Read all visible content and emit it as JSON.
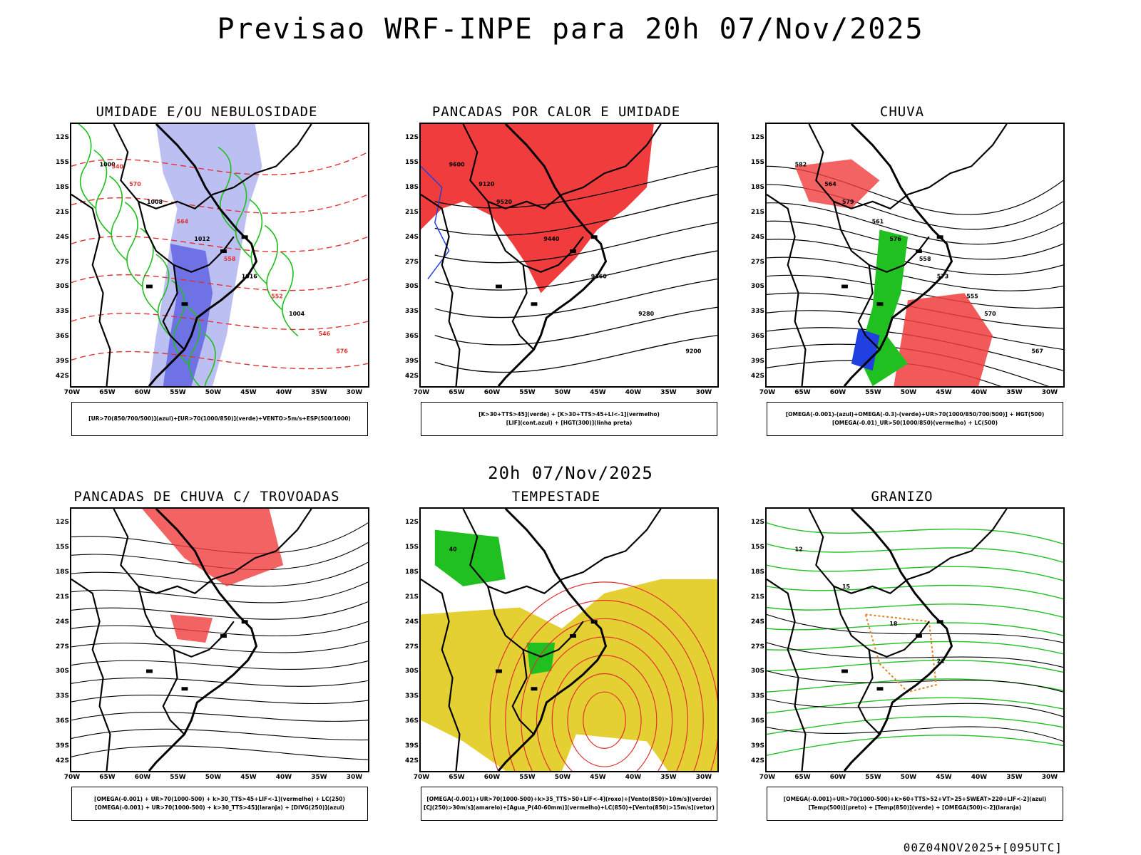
{
  "header": {
    "title": "Previsao WRF-INPE  para 20h 07/Nov/2025",
    "mid_title": "20h 07/Nov/2025",
    "footer": "00Z04NOV2025+[095UTC]"
  },
  "axes": {
    "lat_labels": [
      "12S",
      "15S",
      "18S",
      "21S",
      "24S",
      "27S",
      "30S",
      "33S",
      "36S",
      "39S",
      "42S"
    ],
    "lon_labels": [
      "70W",
      "65W",
      "60W",
      "55W",
      "50W",
      "45W",
      "40W",
      "35W",
      "30W"
    ]
  },
  "panels": [
    {
      "title": "UMIDADE E/OU NEBULOSIDADE",
      "legend_lines": [
        "[UR>70(850/700/500)](azul)+[UR>70(1000/850)](verde)+VENTO>5m/s+ESP(500/1000)"
      ],
      "contour_labels": [
        "1000",
        "1008",
        "1012",
        "1016",
        "1004",
        "576",
        "570",
        "564",
        "558",
        "552",
        "546",
        "540"
      ]
    },
    {
      "title": "PANCADAS POR CALOR E UMIDADE",
      "legend_lines": [
        "[K>30+TTS>45](verde) + [K>30+TTS>45+LI<-1](vermelho)",
        "[LIF](cont.azul) + [HGT(300)](linha preta)"
      ],
      "contour_labels": [
        "9600",
        "9520",
        "9440",
        "9360",
        "9280",
        "9200",
        "9120"
      ]
    },
    {
      "title": "CHUVA",
      "legend_lines": [
        "[OMEGA(-0.001)-(azul)+OMEGA(-0.3)-(verde)+UR>70(1000/850/700/500)] + HGT(500)",
        "[OMEGA(-0.01)_UR>50(1000/850)(vermelho) + LC(500)"
      ],
      "contour_labels": [
        "582",
        "579",
        "576",
        "573",
        "570",
        "567",
        "564",
        "561",
        "558",
        "555"
      ]
    },
    {
      "title": "PANCADAS DE CHUVA C/ TROVOADAS",
      "legend_lines": [
        "[OMEGA(-0.001) + UR>70(1000-500) + k>30_TTS>45+LIF<-1](vermelho) + LC(250)",
        "[OMEGA(-0.001) + UR>70(1000-500) + k>30_TTS>45](laranja) + [DIVG(250)](azul)"
      ],
      "contour_labels": []
    },
    {
      "title": "TEMPESTADE",
      "legend_lines": [
        "[OMEGA(-0.001)+UR>70(1000-500)+k>35_TTS>50+LIF<-4](roxo)+[Vento(850)>10m/s](verde)",
        "[CJ(250)>30m/s](amarelo)+[Agua_P(40-60mm)](vermelho)+LC(850)+[Vento(850)>15m/s](vetor)"
      ],
      "contour_labels": [
        "40"
      ]
    },
    {
      "title": "GRANIZO",
      "legend_lines": [
        "[OMEGA(-0.001)+UR>70(1000-500)+k>60+TTS>52+VT>25+SWEAT>220+LIF<-2](azul)",
        "[Temp(500)](preto) + [Temp(850)](verde) + [OMEGA(500)<-2](laranja)"
      ],
      "contour_labels": [
        "12",
        "15",
        "18",
        "21"
      ]
    }
  ]
}
